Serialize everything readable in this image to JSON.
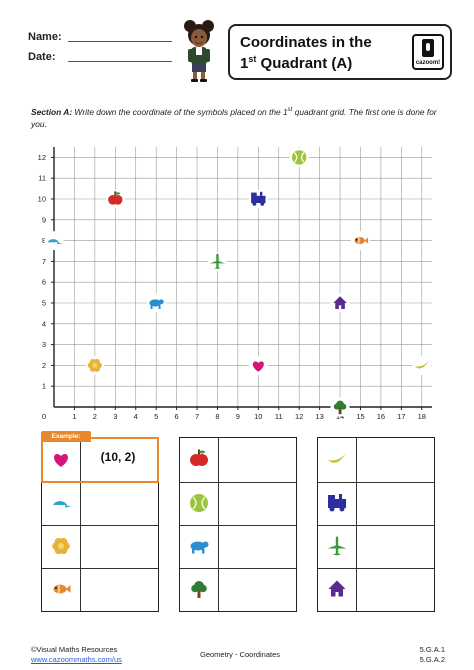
{
  "header": {
    "name_label": "Name:",
    "date_label": "Date:",
    "title_line1": "Coordinates in the",
    "title_line2_pre": "1",
    "title_line2_sup": "st",
    "title_line2_post": " Quadrant (A)",
    "logo_text": "cazoom!"
  },
  "section": {
    "label": "Section A:",
    "text": " Write down the coordinate of the symbols placed on the 1",
    "text_sup": "st",
    "text_post": " quadrant grid. The first one is done for you."
  },
  "grid": {
    "x_ticks": [
      "0",
      "1",
      "2",
      "3",
      "4",
      "5",
      "6",
      "7",
      "8",
      "9",
      "10",
      "11",
      "12",
      "13",
      "14",
      "15",
      "16",
      "17",
      "18"
    ],
    "y_ticks": [
      "1",
      "2",
      "3",
      "4",
      "5",
      "6",
      "7",
      "8",
      "9",
      "10",
      "11",
      "12"
    ],
    "x_max": 18,
    "y_max": 12,
    "symbols": [
      {
        "name": "apple",
        "x": 3,
        "y": 10,
        "color": "#d42a2a"
      },
      {
        "name": "tennis-ball",
        "x": 12,
        "y": 12,
        "color": "#9bc53d"
      },
      {
        "name": "train",
        "x": 10,
        "y": 10,
        "color": "#2e2f9e"
      },
      {
        "name": "cap",
        "x": 0,
        "y": 8,
        "color": "#2ea3c7"
      },
      {
        "name": "fish",
        "x": 15,
        "y": 8,
        "color": "#e8872c"
      },
      {
        "name": "airplane",
        "x": 8,
        "y": 7,
        "color": "#3a9a3a"
      },
      {
        "name": "bear",
        "x": 5,
        "y": 5,
        "color": "#2a8fd1"
      },
      {
        "name": "house",
        "x": 14,
        "y": 5,
        "color": "#5a2b8e"
      },
      {
        "name": "flower",
        "x": 2,
        "y": 2,
        "color": "#e8b23a"
      },
      {
        "name": "heart",
        "x": 10,
        "y": 2,
        "color": "#d4157a"
      },
      {
        "name": "banana",
        "x": 18,
        "y": 2,
        "color": "#c9c22a"
      },
      {
        "name": "tree",
        "x": 14,
        "y": 0,
        "color": "#2e7d32"
      }
    ]
  },
  "example": {
    "tag": "Example:",
    "answer": "(10, 2)"
  },
  "tables": [
    {
      "icons": [
        "heart",
        "cap",
        "flower",
        "fish"
      ]
    },
    {
      "icons": [
        "apple",
        "tennis-ball",
        "bear",
        "tree"
      ]
    },
    {
      "icons": [
        "banana",
        "train",
        "airplane",
        "house"
      ]
    }
  ],
  "footer": {
    "copyright": "©Visual Maths Resources",
    "url": "www.cazoommaths.com/us",
    "subject": "Geometry - Coordinates",
    "code1": "5.G.A.1",
    "code2": "5.G.A.2"
  }
}
